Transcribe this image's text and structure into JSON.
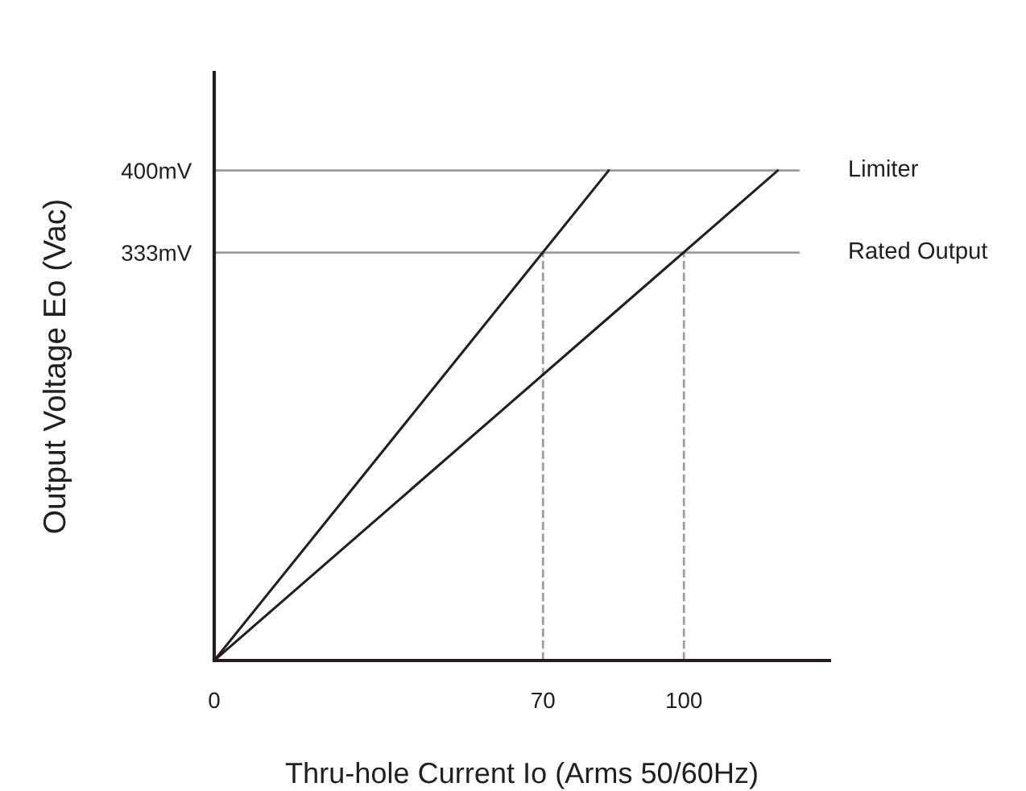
{
  "chart_data": {
    "type": "line",
    "xlabel": "Thru-hole Current Io (Arms 50/60Hz)",
    "ylabel": "Output Voltage Eo (Vac)",
    "series": [
      {
        "color": "#231f20",
        "x": [
          0,
          84
        ],
        "values": [
          0,
          400
        ]
      },
      {
        "color": "#231f20",
        "x": [
          0,
          120
        ],
        "values": [
          0,
          400
        ]
      }
    ],
    "xlim": [
      0,
      131
    ],
    "ylim": [
      0,
      480
    ],
    "xticks": [
      0,
      70,
      100
    ],
    "yticks": [
      {
        "value": 333,
        "label": "333mV"
      },
      {
        "value": 400,
        "label": "400mV"
      }
    ],
    "ref_lines": [
      {
        "axis": "y",
        "value": 400,
        "label": "Limiter",
        "color": "#9d9d9d",
        "line_style": "solid"
      },
      {
        "axis": "y",
        "value": 333,
        "label": "Rated Output",
        "color": "#9d9d9d",
        "line_style": "solid"
      },
      {
        "axis": "x",
        "value": 70,
        "color": "#9d9d9d",
        "line_style": "dashed"
      },
      {
        "axis": "x",
        "value": 100,
        "color": "#9d9d9d",
        "line_style": "dashed"
      }
    ],
    "grid": false,
    "marker": "none",
    "line_style": "solid"
  }
}
